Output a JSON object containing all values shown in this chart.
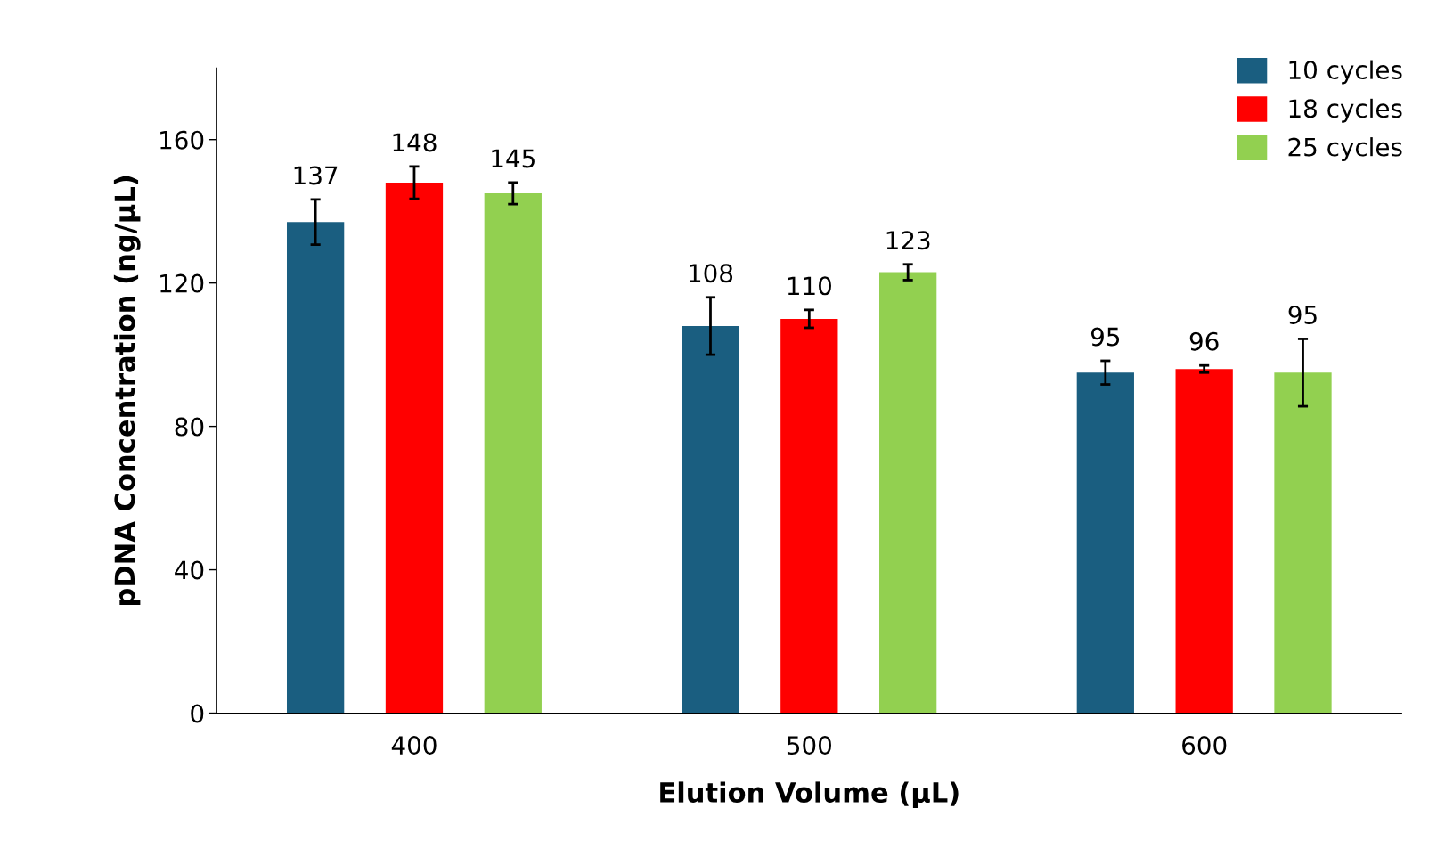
{
  "chart_data": {
    "type": "bar",
    "xlabel": "Elution Volume (µL)",
    "ylabel": "pDNA Concentration (ng/µL)",
    "categories": [
      "400",
      "500",
      "600"
    ],
    "series": [
      {
        "name": "10 cycles",
        "color": "#1a5e80",
        "values": [
          137,
          108,
          95
        ],
        "errors": [
          6.3,
          8,
          3.3
        ]
      },
      {
        "name": "18 cycles",
        "color": "#ff0000",
        "values": [
          148,
          110,
          96
        ],
        "errors": [
          4.5,
          2.5,
          1
        ]
      },
      {
        "name": "25 cycles",
        "color": "#92d050",
        "values": [
          145,
          123,
          95
        ],
        "errors": [
          3,
          2.2,
          9.4
        ]
      }
    ],
    "ylim": [
      0,
      180
    ],
    "yticks": [
      0,
      40,
      80,
      120,
      160
    ],
    "data_labels": true,
    "legend": "top right",
    "grid": false
  }
}
